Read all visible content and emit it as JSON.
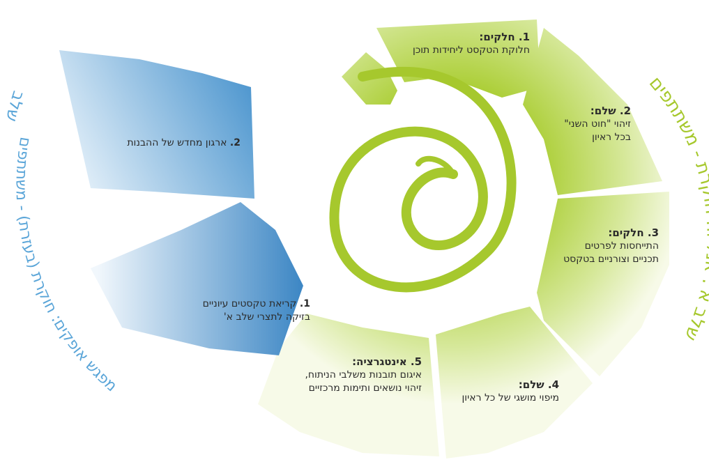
{
  "colors": {
    "green_light": "#f7fae8",
    "green_mid": "#cfe38a",
    "green_dark": "#a8cc2e",
    "blue_light": "#eef6fc",
    "blue_dark": "#4f97cf",
    "spiral": "#a6c82d",
    "green_text": "#a6c82d",
    "blue_text": "#5aa5d8"
  },
  "arc_titles": {
    "green": "שלב א': אנליזה חוקרת - משתתפים",
    "blue_top": "שלב ב':",
    "blue_bottom": "מפגש אופקים: חוקרת (בעזרת) - משתתפים"
  },
  "steps": {
    "s1": {
      "title": "1.  חלקים:",
      "line1": "חלוקת הטקסט ליחידות תוכן",
      "line2": ""
    },
    "s2": {
      "title": "2.  שלם:",
      "line1": "זיהוי \"חוט השני\"",
      "line2": "בכל ראיון"
    },
    "s3": {
      "title": "3.  חלקים:",
      "line1": "התייחסות לפרטים",
      "line2": "תכניים וצורניים בטקסט"
    },
    "s4": {
      "title": "4.  שלם:",
      "line1": "מיפוי מושגי של כל ראיון",
      "line2": ""
    },
    "s5": {
      "title": "5.  אינטגרציה:",
      "line1": "איגום תובנות משלבי הניתוח,",
      "line2": "זיהוי נושאים ותימות מרכזיים"
    }
  },
  "blue_steps": {
    "b1": {
      "title": "1.",
      "line1": "קריאת טקסטים עיוניים",
      "line2": "בזיקה לתצרי שלב א'"
    },
    "b2": {
      "title": "2.",
      "line1": "ארגון מחדש של ההבנות",
      "line2": ""
    }
  }
}
